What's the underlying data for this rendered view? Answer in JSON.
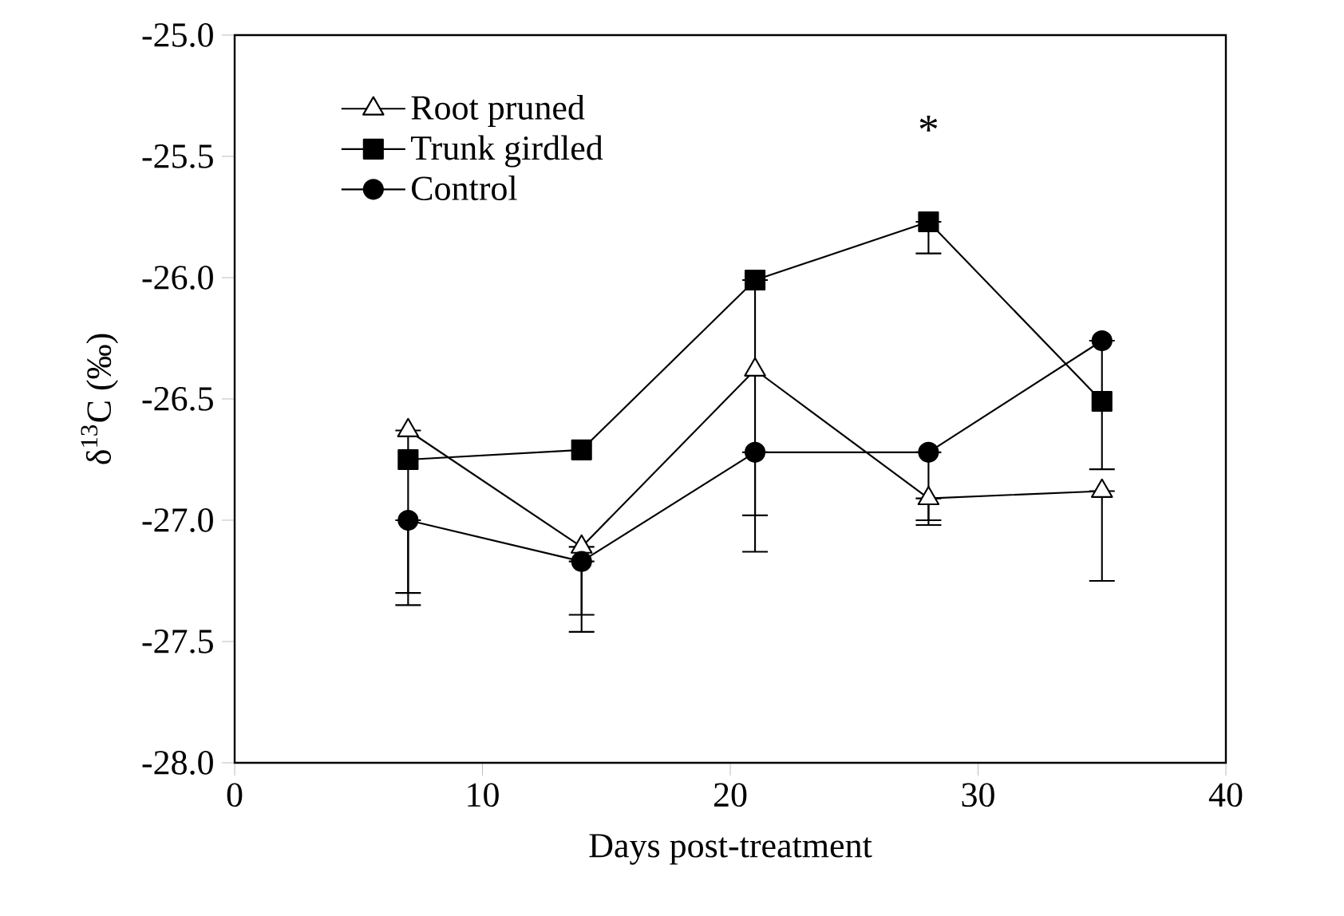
{
  "chart_data": {
    "type": "line",
    "xlabel": "Days post-treatment",
    "ylabel": "δ$^{13}$C (‰)",
    "x": [
      7,
      14,
      21,
      28,
      35
    ],
    "series": [
      {
        "name": "Root pruned",
        "color": "#000000",
        "marker": "triangle",
        "values": [
          -26.63,
          -27.11,
          -26.38,
          -26.91,
          -26.88
        ],
        "errors": [
          [
            -27.3,
            -26.63
          ],
          [
            -27.39,
            -27.11
          ],
          null,
          [
            -27.02,
            -26.91
          ],
          [
            -27.25,
            -26.88
          ]
        ]
      },
      {
        "name": "Trunk girdled",
        "color": "#000000",
        "marker": "square",
        "values": [
          -26.75,
          -26.71,
          -26.01,
          -25.77,
          -26.51
        ],
        "errors": [
          null,
          null,
          [
            -26.98,
            -26.01
          ],
          [
            -25.9,
            -25.77
          ],
          null
        ]
      },
      {
        "name": "Control",
        "color": "#000000",
        "marker": "circle",
        "values": [
          -27.0,
          -27.17,
          -26.72,
          -26.72,
          -26.26
        ],
        "errors": [
          [
            -27.35,
            -27.0
          ],
          [
            -27.46,
            -27.17
          ],
          [
            -27.13,
            -26.72
          ],
          [
            -27.0,
            -26.72
          ],
          [
            -26.79,
            -26.26
          ]
        ]
      }
    ],
    "xlim": [
      0,
      40
    ],
    "xticks": [
      0,
      10,
      20,
      30,
      40
    ],
    "ylim": [
      -28,
      -25
    ],
    "yticks": [
      {
        "value": -28,
        "label": "-28.0"
      },
      {
        "value": -27.5,
        "label": "-27.5"
      },
      {
        "value": -27,
        "label": "-27.0"
      },
      {
        "value": -26.5,
        "label": "-26.5"
      },
      {
        "value": -26,
        "label": "-26.0"
      },
      {
        "value": -25.5,
        "label": "-25.5"
      },
      {
        "value": -25,
        "label": "-25.0"
      }
    ],
    "annotations": [
      "*"
    ],
    "legend": "top left",
    "grid": false,
    "line_style": "solid"
  }
}
